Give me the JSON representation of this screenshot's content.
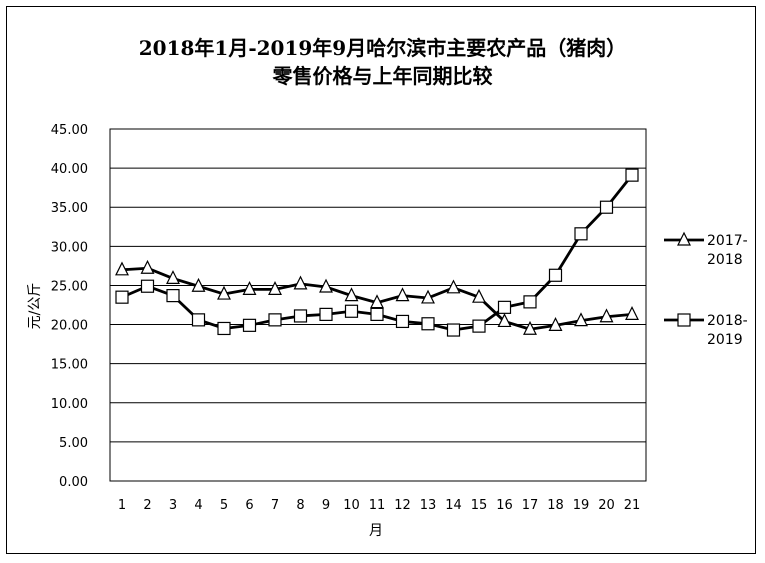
{
  "chart_data": {
    "type": "line",
    "title_line1": "2018年1月-2019年9月哈尔滨市主要农产品（猪肉）",
    "title_line2": "零售价格与上年同期比较",
    "xlabel": "月",
    "ylabel": "元/公斤",
    "ylim": [
      0,
      45
    ],
    "y_ticks": [
      "0.00",
      "5.00",
      "10.00",
      "15.00",
      "20.00",
      "25.00",
      "30.00",
      "35.00",
      "40.00",
      "45.00"
    ],
    "categories": [
      "1",
      "2",
      "3",
      "4",
      "5",
      "6",
      "7",
      "8",
      "9",
      "10",
      "11",
      "12",
      "13",
      "14",
      "15",
      "16",
      "17",
      "18",
      "19",
      "20",
      "21"
    ],
    "grid": "horizontal",
    "legend_position": "right",
    "series": [
      {
        "name_line1": "2017-",
        "name_line2": "2018",
        "marker": "triangle",
        "values": [
          27.0,
          27.2,
          25.9,
          24.9,
          23.9,
          24.5,
          24.5,
          25.2,
          24.8,
          23.7,
          22.8,
          23.7,
          23.4,
          24.7,
          23.5,
          20.4,
          19.4,
          19.9,
          20.5,
          21.0,
          21.3
        ]
      },
      {
        "name_line1": "2018-",
        "name_line2": "2019",
        "marker": "square",
        "values": [
          23.5,
          24.9,
          23.7,
          20.6,
          19.5,
          19.9,
          20.6,
          21.1,
          21.3,
          21.7,
          21.3,
          20.4,
          20.1,
          19.3,
          19.8,
          22.2,
          22.9,
          26.3,
          31.6,
          35.0,
          39.1
        ]
      }
    ]
  }
}
